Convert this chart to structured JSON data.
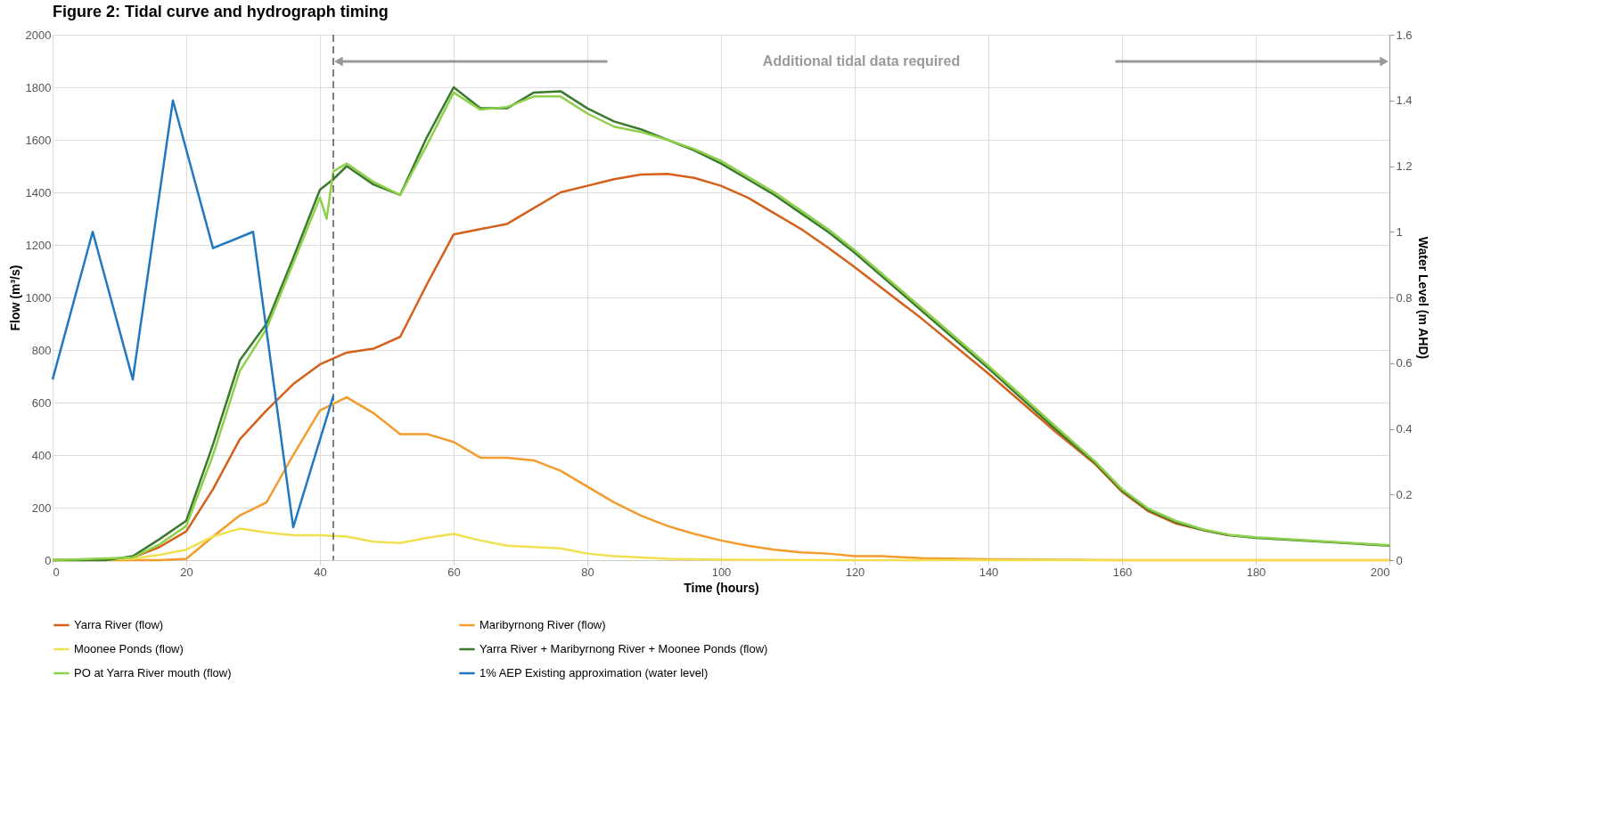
{
  "chart_data": {
    "type": "line",
    "title": "Figure 2: Tidal curve and hydrograph timing",
    "xlabel": "Time (hours)",
    "ylabel": "Flow (m³/s)",
    "y2label": "Water Level (m AHD)",
    "xlim": [
      0,
      200
    ],
    "xticks": [
      0,
      20,
      40,
      60,
      80,
      100,
      120,
      140,
      160,
      180,
      200
    ],
    "ylim": [
      0,
      2000
    ],
    "yticks": [
      0,
      200,
      400,
      600,
      800,
      1000,
      1200,
      1400,
      1600,
      1800,
      2000
    ],
    "y2lim": [
      0,
      1.6
    ],
    "y2ticks": [
      0,
      0.2,
      0.4,
      0.6,
      0.8,
      1,
      1.2,
      1.4,
      1.6
    ],
    "grid": true,
    "legend": "bottom",
    "marker": "none",
    "line_style": "solid",
    "ref_lines": [
      {
        "axis": "x",
        "value": 42,
        "line_style": "dashed",
        "color": "#555555"
      }
    ],
    "annotations": [
      "Additional tidal data required"
    ],
    "series": [
      {
        "name": "Yarra River (flow)",
        "color": "#d4601a",
        "x": [
          0,
          10,
          12,
          16,
          20,
          24,
          28,
          32,
          36,
          40,
          44,
          48,
          52,
          56,
          60,
          64,
          68,
          72,
          76,
          80,
          84,
          88,
          92,
          96,
          100,
          104,
          108,
          112,
          116,
          120,
          130,
          140,
          150,
          156,
          160,
          164,
          168,
          172,
          176
        ],
        "values": [
          0,
          5,
          10,
          50,
          110,
          270,
          460,
          570,
          670,
          745,
          790,
          805,
          850,
          1050,
          1240,
          1260,
          1280,
          1340,
          1400,
          1425,
          1450,
          1468,
          1470,
          1455,
          1425,
          1380,
          1320,
          1260,
          1190,
          1115,
          920,
          710,
          490,
          365,
          260,
          185,
          140,
          115,
          95
        ]
      },
      {
        "name": "Maribyrnong River (flow)",
        "color": "#f39b2c",
        "x": [
          0,
          12,
          16,
          20,
          24,
          28,
          32,
          36,
          40,
          44,
          48,
          52,
          56,
          60,
          64,
          68,
          72,
          76,
          80,
          84,
          88,
          92,
          96,
          100,
          104,
          108,
          112,
          116,
          120,
          124,
          130,
          140,
          150,
          160,
          200
        ],
        "values": [
          0,
          0,
          0,
          5,
          90,
          170,
          220,
          400,
          570,
          620,
          560,
          480,
          480,
          450,
          390,
          390,
          380,
          340,
          280,
          220,
          170,
          130,
          100,
          75,
          55,
          40,
          30,
          25,
          15,
          15,
          8,
          3,
          2,
          0,
          0
        ]
      },
      {
        "name": "Moonee Ponds (flow)",
        "color": "#f0e050",
        "x": [
          0,
          12,
          16,
          20,
          24,
          28,
          32,
          36,
          40,
          44,
          48,
          52,
          56,
          60,
          64,
          68,
          72,
          76,
          80,
          84,
          88,
          92,
          100,
          120,
          200
        ],
        "values": [
          0,
          5,
          20,
          40,
          90,
          120,
          105,
          95,
          95,
          90,
          70,
          65,
          85,
          100,
          75,
          55,
          50,
          45,
          25,
          15,
          10,
          5,
          2,
          0,
          0
        ]
      },
      {
        "name": "Yarra River + Maribyrnong River + Moonee Ponds  (flow)",
        "color": "#3a7a2e",
        "x": [
          0,
          8,
          12,
          16,
          20,
          24,
          28,
          32,
          36,
          40,
          42,
          44,
          48,
          52,
          56,
          60,
          64,
          68,
          72,
          76,
          80,
          84,
          88,
          92,
          96,
          100,
          104,
          108,
          112,
          116,
          120,
          130,
          140,
          150,
          156,
          160,
          164,
          168,
          172,
          176,
          180,
          190,
          200
        ],
        "values": [
          0,
          0,
          15,
          80,
          150,
          440,
          760,
          900,
          1150,
          1410,
          1450,
          1500,
          1430,
          1390,
          1610,
          1800,
          1720,
          1720,
          1780,
          1785,
          1720,
          1670,
          1640,
          1600,
          1560,
          1510,
          1450,
          1390,
          1320,
          1250,
          1170,
          950,
          730,
          500,
          370,
          265,
          190,
          145,
          115,
          95,
          85,
          70,
          55
        ]
      },
      {
        "name": "PO at Yarra River mouth (flow)",
        "color": "#8fd04a",
        "x": [
          0,
          12,
          16,
          20,
          24,
          28,
          32,
          36,
          40,
          41,
          42,
          44,
          48,
          52,
          56,
          60,
          64,
          68,
          72,
          76,
          80,
          84,
          88,
          92,
          96,
          100,
          104,
          108,
          112,
          116,
          120,
          130,
          140,
          150,
          156,
          160,
          164,
          168,
          172,
          176,
          180,
          190,
          200
        ],
        "values": [
          0,
          10,
          60,
          130,
          400,
          720,
          880,
          1130,
          1380,
          1300,
          1480,
          1510,
          1440,
          1390,
          1580,
          1780,
          1715,
          1725,
          1765,
          1765,
          1700,
          1650,
          1630,
          1600,
          1565,
          1520,
          1460,
          1400,
          1330,
          1260,
          1180,
          960,
          740,
          510,
          375,
          270,
          195,
          150,
          118,
          97,
          87,
          72,
          57
        ]
      },
      {
        "name": "1% AEP Existing approximation (water level)",
        "color": "#1f78c1",
        "axis": "y2",
        "x": [
          0,
          6,
          12,
          18,
          24,
          30,
          36,
          42
        ],
        "values": [
          0.55,
          1.0,
          0.55,
          1.4,
          0.95,
          1.0,
          0.1,
          0.5
        ]
      }
    ]
  }
}
